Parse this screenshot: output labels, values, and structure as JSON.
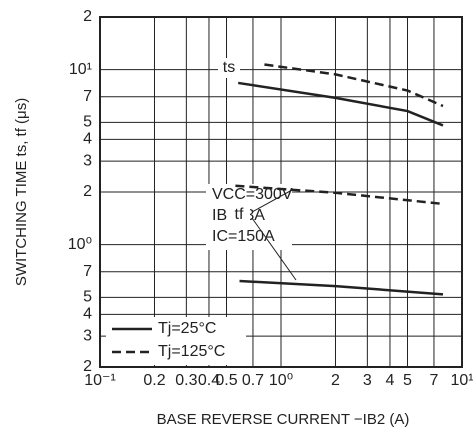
{
  "chart_data": {
    "type": "line",
    "xlabel": "BASE REVERSE CURRENT   −IB2 (A)",
    "ylabel": "SWITCHING TIME   ts, tf (μs)",
    "log_x": true,
    "log_y": true,
    "grid": true,
    "xlim": [
      0.1,
      10
    ],
    "ylim": [
      0.2,
      20
    ],
    "xticks": [
      {
        "value": 0.1,
        "label": "10⁻¹"
      },
      0.2,
      0.3,
      0.4,
      0.5,
      0.7,
      {
        "value": 1,
        "label": "10⁰"
      },
      2,
      3,
      4,
      5,
      7,
      {
        "value": 10,
        "label": "10¹"
      }
    ],
    "yticks": [
      {
        "value": 0.2,
        "label": "2"
      },
      {
        "value": 0.3,
        "label": "3"
      },
      {
        "value": 0.4,
        "label": "4"
      },
      {
        "value": 0.5,
        "label": "5"
      },
      {
        "value": 0.7,
        "label": "7"
      },
      {
        "value": 1,
        "label": "10⁰"
      },
      2,
      3,
      4,
      5,
      7,
      {
        "value": 10,
        "label": "10¹"
      },
      {
        "value": 20,
        "label": "2"
      }
    ],
    "legend": [
      {
        "label": "Tj=25°C",
        "dash": false
      },
      {
        "label": "Tj=125°C",
        "dash": true
      }
    ],
    "legend_position": "lower left",
    "color": "#222222",
    "conditions": [
      "VCC=300V",
      "IB1=3A",
      "IC=150A"
    ],
    "curves": [
      {
        "name": "ts",
        "lines": [
          {
            "x": [
              0.58,
              2,
              5,
              7.85
            ],
            "values": [
              8.4,
              6.9,
              5.8,
              4.8
            ]
          },
          {
            "x": [
              0.81,
              2,
              5,
              7.85
            ],
            "values": [
              10.7,
              9.4,
              7.6,
              6.2
            ]
          }
        ]
      },
      {
        "name": "tf",
        "lines": [
          {
            "x": [
              0.59,
              2,
              7.85
            ],
            "values": [
              0.62,
              0.58,
              0.52
            ]
          },
          {
            "x": [
              0.56,
              2,
              7.85
            ],
            "values": [
              2.17,
              1.98,
              1.71
            ]
          }
        ]
      }
    ]
  }
}
